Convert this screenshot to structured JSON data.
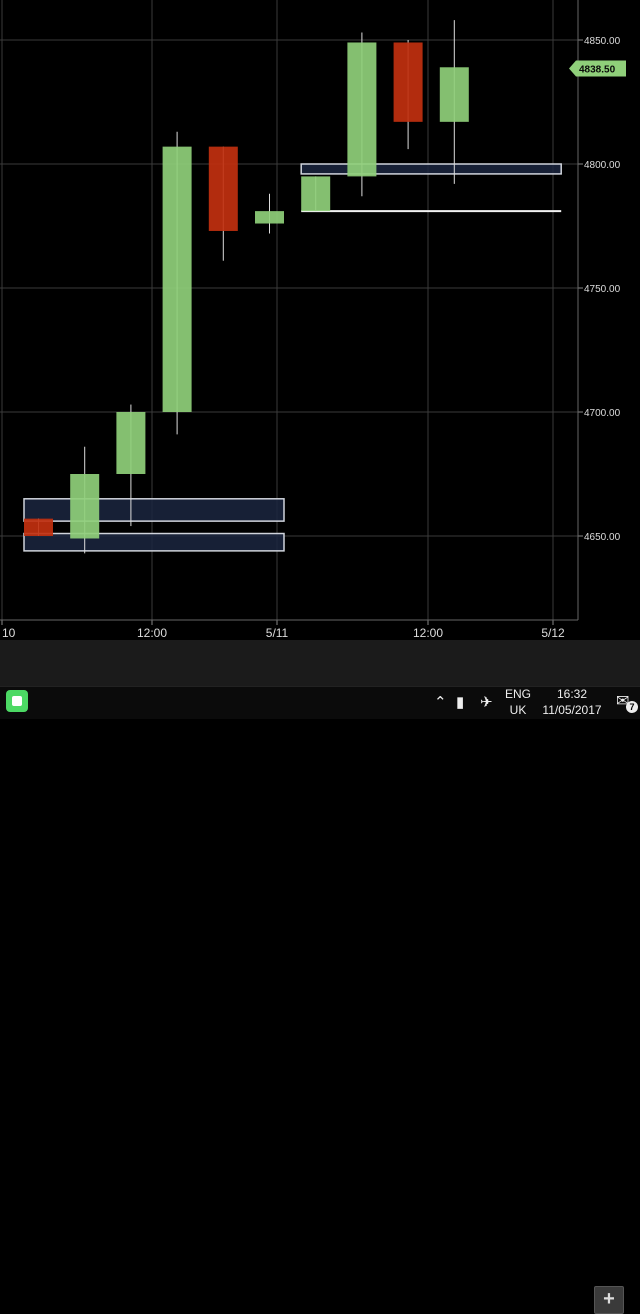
{
  "chart_data": {
    "type": "candlestick",
    "x_tick_labels": [
      "10",
      "12:00",
      "5/11",
      "12:00",
      "5/12"
    ],
    "y_tick_labels": [
      "4650.00",
      "4700.00",
      "4750.00",
      "4800.00",
      "4850.00"
    ],
    "ylim": [
      4609,
      4865
    ],
    "current_price": "4838.50",
    "grid": true,
    "colors": {
      "up": "#8fcf7a",
      "down": "#c1300f",
      "price_tag": "#8fcf7a",
      "grid": "#3a3a3a",
      "zone_fill": "#1b2640",
      "zone_border": "#d0d4dc"
    },
    "candles": [
      {
        "open": 4657,
        "close": 4650,
        "high": 4657,
        "low": 4650
      },
      {
        "open": 4649,
        "close": 4675,
        "high": 4686,
        "low": 4643
      },
      {
        "open": 4675,
        "close": 4700,
        "high": 4703,
        "low": 4654
      },
      {
        "open": 4700,
        "close": 4807,
        "high": 4813,
        "low": 4691
      },
      {
        "open": 4807,
        "close": 4773,
        "high": 4807,
        "low": 4761
      },
      {
        "open": 4776,
        "close": 4781,
        "high": 4788,
        "low": 4772
      },
      {
        "open": 4781,
        "close": 4795,
        "high": 4795,
        "low": 4781
      },
      {
        "open": 4795,
        "close": 4849,
        "high": 4853,
        "low": 4787
      },
      {
        "open": 4849,
        "close": 4817,
        "high": 4850,
        "low": 4806
      },
      {
        "open": 4817,
        "close": 4839,
        "high": 4858,
        "low": 4792
      }
    ],
    "zones": [
      {
        "low": 4656,
        "high": 4665,
        "start_candle": 0.5,
        "end_candle": 5.5
      },
      {
        "low": 4644,
        "high": 4651,
        "start_candle": 0.5,
        "end_candle": 5.5
      },
      {
        "low": 4796,
        "high": 4800,
        "start_candle": 6.5,
        "end_candle": 11.5
      }
    ],
    "lines": [
      {
        "price": 4781,
        "start_candle": 6.5,
        "end_candle": 11.5
      }
    ]
  },
  "toolbar": {
    "add_label": "+"
  },
  "taskbar": {
    "language_line1": "ENG",
    "language_line2": "UK",
    "time": "16:32",
    "date": "11/05/2017",
    "notification_count": "7"
  },
  "icons": [
    "start-icon",
    "chevron-up-icon",
    "battery-icon",
    "airplane-icon",
    "notification-icon"
  ]
}
